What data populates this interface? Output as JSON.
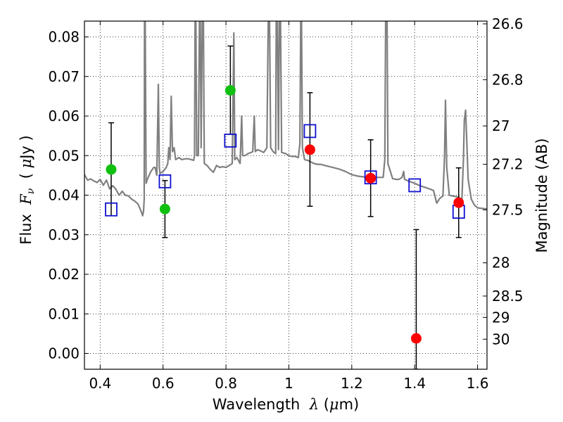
{
  "chart_data": {
    "type": "scatter",
    "xlabel": {
      "prefix": "Wavelength  ",
      "lambda": "λ",
      "open": " (",
      "mu": "μ",
      "unit": "m)"
    },
    "ylabel": {
      "prefix": "Flux  ",
      "F": "F",
      "nu": "ν",
      "open": "  ( ",
      "mu": "μ",
      "unit": "Jy )"
    },
    "y2label": "Magnitude (AB)",
    "xlim": [
      0.35,
      1.63
    ],
    "ylim": [
      -0.004,
      0.084
    ],
    "grid": true,
    "x_ticks": [
      {
        "value": 0.4,
        "label": "0.4"
      },
      {
        "value": 0.6,
        "label": "0.6"
      },
      {
        "value": 0.8,
        "label": "0.8"
      },
      {
        "value": 1.0,
        "label": "1"
      },
      {
        "value": 1.2,
        "label": "1.2"
      },
      {
        "value": 1.4,
        "label": "1.4"
      },
      {
        "value": 1.6,
        "label": "1.6"
      }
    ],
    "y_ticks": [
      {
        "value": 0.0,
        "label": "0.00"
      },
      {
        "value": 0.01,
        "label": "0.01"
      },
      {
        "value": 0.02,
        "label": "0.02"
      },
      {
        "value": 0.03,
        "label": "0.03"
      },
      {
        "value": 0.04,
        "label": "0.04"
      },
      {
        "value": 0.05,
        "label": "0.05"
      },
      {
        "value": 0.06,
        "label": "0.06"
      },
      {
        "value": 0.07,
        "label": "0.07"
      },
      {
        "value": 0.08,
        "label": "0.08"
      }
    ],
    "y2_ticks": [
      {
        "flux": 0.0833,
        "label": "26.6"
      },
      {
        "flux": 0.0692,
        "label": "26.8"
      },
      {
        "flux": 0.0575,
        "label": "27"
      },
      {
        "flux": 0.0478,
        "label": "27.2"
      },
      {
        "flux": 0.0363,
        "label": "27.5"
      },
      {
        "flux": 0.0229,
        "label": "28"
      },
      {
        "flux": 0.0145,
        "label": "28.5"
      },
      {
        "flux": 0.0091,
        "label": "29"
      },
      {
        "flux": 0.0036,
        "label": "30"
      }
    ],
    "colors": {
      "model": "#808080",
      "model_photometry": "#1010d0",
      "observed_optical": "#10c010",
      "observed_nir": "#ff0000",
      "errorbar": "#000000"
    },
    "model_photometry": [
      {
        "x": 0.435,
        "y": 0.0364
      },
      {
        "x": 0.606,
        "y": 0.0435
      },
      {
        "x": 0.814,
        "y": 0.0538
      },
      {
        "x": 1.067,
        "y": 0.0562
      },
      {
        "x": 1.26,
        "y": 0.0445
      },
      {
        "x": 1.4,
        "y": 0.0425
      },
      {
        "x": 1.54,
        "y": 0.0358
      }
    ],
    "observed_optical": [
      {
        "x": 0.435,
        "y": 0.0465,
        "lo": 0.0348,
        "hi": 0.0583
      },
      {
        "x": 0.606,
        "y": 0.0365,
        "lo": 0.0293,
        "hi": 0.0437
      },
      {
        "x": 0.814,
        "y": 0.0665,
        "lo": 0.0554,
        "hi": 0.0777
      }
    ],
    "observed_nir": [
      {
        "x": 1.067,
        "y": 0.0515,
        "lo": 0.0372,
        "hi": 0.0659
      },
      {
        "x": 1.26,
        "y": 0.0443,
        "lo": 0.0346,
        "hi": 0.054
      },
      {
        "x": 1.405,
        "y": 0.0038,
        "lo": -0.004,
        "hi": 0.0313
      },
      {
        "x": 1.54,
        "y": 0.0381,
        "lo": 0.0293,
        "hi": 0.0469
      }
    ],
    "model_spectrum": [
      [
        0.35,
        0.0452
      ],
      [
        0.36,
        0.0438
      ],
      [
        0.37,
        0.0441
      ],
      [
        0.38,
        0.0436
      ],
      [
        0.39,
        0.0432
      ],
      [
        0.4,
        0.044
      ],
      [
        0.41,
        0.0425
      ],
      [
        0.42,
        0.0438
      ],
      [
        0.43,
        0.0416
      ],
      [
        0.44,
        0.0424
      ],
      [
        0.45,
        0.0415
      ],
      [
        0.46,
        0.04
      ],
      [
        0.47,
        0.041
      ],
      [
        0.48,
        0.04
      ],
      [
        0.49,
        0.0398
      ],
      [
        0.5,
        0.039
      ],
      [
        0.51,
        0.0385
      ],
      [
        0.52,
        0.0378
      ],
      [
        0.53,
        0.036
      ],
      [
        0.535,
        0.0348
      ],
      [
        0.538,
        0.036
      ],
      [
        0.54,
        0.039
      ],
      [
        0.541,
        0.088
      ],
      [
        0.543,
        0.088
      ],
      [
        0.546,
        0.043
      ],
      [
        0.55,
        0.044
      ],
      [
        0.56,
        0.0458
      ],
      [
        0.57,
        0.047
      ],
      [
        0.575,
        0.047
      ],
      [
        0.58,
        0.045
      ],
      [
        0.585,
        0.068
      ],
      [
        0.588,
        0.047
      ],
      [
        0.59,
        0.0455
      ],
      [
        0.6,
        0.046
      ],
      [
        0.61,
        0.047
      ],
      [
        0.615,
        0.048
      ],
      [
        0.618,
        0.052
      ],
      [
        0.622,
        0.049
      ],
      [
        0.626,
        0.065
      ],
      [
        0.63,
        0.051
      ],
      [
        0.635,
        0.052
      ],
      [
        0.64,
        0.049
      ],
      [
        0.65,
        0.0495
      ],
      [
        0.66,
        0.049
      ],
      [
        0.67,
        0.0492
      ],
      [
        0.68,
        0.0492
      ],
      [
        0.69,
        0.049
      ],
      [
        0.697,
        0.0488
      ],
      [
        0.7,
        0.05
      ],
      [
        0.702,
        0.088
      ],
      [
        0.704,
        0.088
      ],
      [
        0.707,
        0.05
      ],
      [
        0.712,
        0.05
      ],
      [
        0.716,
        0.088
      ],
      [
        0.718,
        0.088
      ],
      [
        0.721,
        0.052
      ],
      [
        0.725,
        0.088
      ],
      [
        0.728,
        0.088
      ],
      [
        0.731,
        0.048
      ],
      [
        0.74,
        0.0475
      ],
      [
        0.75,
        0.0465
      ],
      [
        0.76,
        0.0458
      ],
      [
        0.77,
        0.0475
      ],
      [
        0.78,
        0.047
      ],
      [
        0.79,
        0.0472
      ],
      [
        0.8,
        0.047
      ],
      [
        0.81,
        0.0475
      ],
      [
        0.82,
        0.048
      ],
      [
        0.825,
        0.081
      ],
      [
        0.828,
        0.049
      ],
      [
        0.835,
        0.0495
      ],
      [
        0.845,
        0.048
      ],
      [
        0.85,
        0.06
      ],
      [
        0.853,
        0.05
      ],
      [
        0.86,
        0.05
      ],
      [
        0.87,
        0.0505
      ],
      [
        0.88,
        0.0508
      ],
      [
        0.885,
        0.051
      ],
      [
        0.89,
        0.06
      ],
      [
        0.893,
        0.051
      ],
      [
        0.9,
        0.0515
      ],
      [
        0.91,
        0.0512
      ],
      [
        0.92,
        0.0508
      ],
      [
        0.93,
        0.052
      ],
      [
        0.935,
        0.088
      ],
      [
        0.938,
        0.088
      ],
      [
        0.942,
        0.052
      ],
      [
        0.95,
        0.051
      ],
      [
        0.958,
        0.0505
      ],
      [
        0.96,
        0.088
      ],
      [
        0.963,
        0.088
      ],
      [
        0.967,
        0.0515
      ],
      [
        0.97,
        0.088
      ],
      [
        0.973,
        0.088
      ],
      [
        0.977,
        0.0508
      ],
      [
        0.99,
        0.0505
      ],
      [
        1.0,
        0.05
      ],
      [
        1.01,
        0.0498
      ],
      [
        1.02,
        0.0498
      ],
      [
        1.03,
        0.0495
      ],
      [
        1.035,
        0.053
      ],
      [
        1.038,
        0.088
      ],
      [
        1.04,
        0.088
      ],
      [
        1.043,
        0.052
      ],
      [
        1.05,
        0.049
      ],
      [
        1.06,
        0.0488
      ],
      [
        1.07,
        0.0484
      ],
      [
        1.08,
        0.048
      ],
      [
        1.09,
        0.0478
      ],
      [
        1.1,
        0.0478
      ],
      [
        1.12,
        0.0474
      ],
      [
        1.14,
        0.047
      ],
      [
        1.16,
        0.0466
      ],
      [
        1.18,
        0.046
      ],
      [
        1.2,
        0.0452
      ],
      [
        1.22,
        0.0448
      ],
      [
        1.24,
        0.0446
      ],
      [
        1.26,
        0.044
      ],
      [
        1.28,
        0.0445
      ],
      [
        1.3,
        0.0445
      ],
      [
        1.305,
        0.049
      ],
      [
        1.308,
        0.088
      ],
      [
        1.312,
        0.088
      ],
      [
        1.315,
        0.048
      ],
      [
        1.33,
        0.0442
      ],
      [
        1.34,
        0.044
      ],
      [
        1.35,
        0.044
      ],
      [
        1.36,
        0.0445
      ],
      [
        1.365,
        0.046
      ],
      [
        1.368,
        0.044
      ],
      [
        1.38,
        0.0436
      ],
      [
        1.4,
        0.043
      ],
      [
        1.42,
        0.0423
      ],
      [
        1.44,
        0.0418
      ],
      [
        1.46,
        0.0412
      ],
      [
        1.47,
        0.038
      ],
      [
        1.48,
        0.0392
      ],
      [
        1.49,
        0.0398
      ],
      [
        1.495,
        0.05
      ],
      [
        1.498,
        0.064
      ],
      [
        1.502,
        0.047
      ],
      [
        1.51,
        0.04
      ],
      [
        1.52,
        0.0398
      ],
      [
        1.54,
        0.0395
      ],
      [
        1.55,
        0.0388
      ],
      [
        1.555,
        0.049
      ],
      [
        1.558,
        0.059
      ],
      [
        1.562,
        0.0615
      ],
      [
        1.565,
        0.055
      ],
      [
        1.57,
        0.044
      ],
      [
        1.58,
        0.039
      ],
      [
        1.59,
        0.0375
      ],
      [
        1.6,
        0.0368
      ],
      [
        1.61,
        0.0367
      ],
      [
        1.62,
        0.0366
      ],
      [
        1.63,
        0.0365
      ]
    ]
  }
}
